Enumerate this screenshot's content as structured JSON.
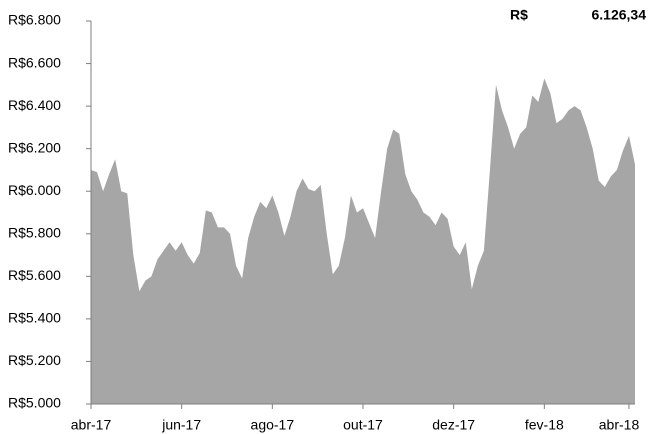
{
  "chart_data": {
    "type": "area",
    "annotation": [
      "R$",
      "6.126,34"
    ],
    "color": "#a6a6a6",
    "categories": [
      "abr-17",
      null,
      null,
      null,
      null,
      null,
      null,
      null,
      null,
      null,
      null,
      null,
      null,
      null,
      null,
      "jun-17",
      null,
      null,
      null,
      null,
      null,
      null,
      null,
      null,
      null,
      null,
      null,
      null,
      null,
      null,
      "ago-17",
      null,
      null,
      null,
      null,
      null,
      null,
      null,
      null,
      null,
      null,
      null,
      null,
      null,
      null,
      "out-17",
      null,
      null,
      null,
      null,
      null,
      null,
      null,
      null,
      null,
      null,
      null,
      null,
      null,
      null,
      "dez-17",
      null,
      null,
      null,
      null,
      null,
      null,
      null,
      null,
      null,
      null,
      null,
      null,
      null,
      null,
      "fev-18",
      null,
      null,
      null,
      null,
      null,
      null,
      null,
      null,
      null,
      null,
      null,
      null,
      null,
      "abr-18",
      null
    ],
    "values": [
      6100,
      6090,
      6000,
      6080,
      6150,
      6000,
      5990,
      5700,
      5530,
      5580,
      5600,
      5680,
      5720,
      5760,
      5720,
      5760,
      5700,
      5660,
      5710,
      5910,
      5900,
      5830,
      5830,
      5800,
      5650,
      5590,
      5780,
      5880,
      5950,
      5920,
      5980,
      5900,
      5790,
      5880,
      6000,
      6060,
      6010,
      6000,
      6030,
      5800,
      5610,
      5650,
      5780,
      5980,
      5900,
      5920,
      5850,
      5780,
      6000,
      6200,
      6290,
      6270,
      6080,
      6000,
      5960,
      5900,
      5880,
      5840,
      5900,
      5870,
      5740,
      5700,
      5760,
      5540,
      5650,
      5720,
      6100,
      6500,
      6380,
      6300,
      6200,
      6270,
      6300,
      6450,
      6420,
      6530,
      6460,
      6320,
      6340,
      6380,
      6400,
      6380,
      6300,
      6200,
      6050,
      6020,
      6070,
      6100,
      6190,
      6260,
      6126.34
    ],
    "ylim": [
      5000,
      6800
    ],
    "yticks": [
      {
        "value": 5000,
        "label": "R$5.000"
      },
      {
        "value": 5200,
        "label": "R$5.200"
      },
      {
        "value": 5400,
        "label": "R$5.400"
      },
      {
        "value": 5600,
        "label": "R$5.600"
      },
      {
        "value": 5800,
        "label": "R$5.800"
      },
      {
        "value": 6000,
        "label": "R$6.000"
      },
      {
        "value": 6200,
        "label": "R$6.200"
      },
      {
        "value": 6400,
        "label": "R$6.400"
      },
      {
        "value": 6600,
        "label": "R$6.600"
      },
      {
        "value": 6800,
        "label": "R$6.800"
      }
    ],
    "grid": false
  }
}
